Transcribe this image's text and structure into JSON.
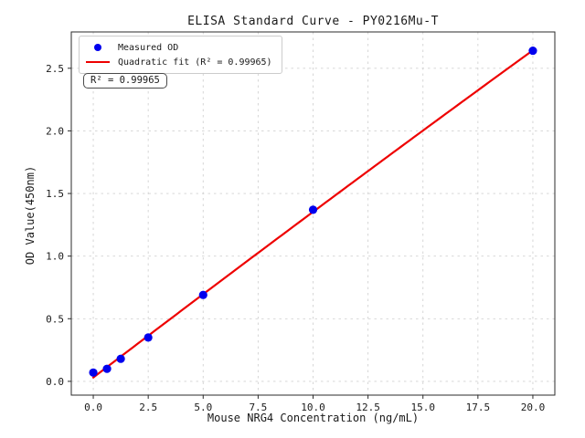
{
  "chart_data": {
    "type": "scatter",
    "title": "ELISA Standard Curve - PY0216Mu-T",
    "xlabel": "Mouse NRG4 Concentration (ng/mL)",
    "ylabel": "OD Value(450nm)",
    "xlim": [
      -1,
      21
    ],
    "ylim": [
      -0.11,
      2.79
    ],
    "grid": true,
    "grid_style": "dashed",
    "legend_position": "upper-left",
    "x_tick_values": [
      0,
      2.5,
      5,
      7.5,
      10,
      12.5,
      15,
      17.5,
      20
    ],
    "x_tick_labels": [
      "0.0",
      "2.5",
      "5.0",
      "7.5",
      "10.0",
      "12.5",
      "15.0",
      "17.5",
      "20.0"
    ],
    "y_tick_values": [
      0,
      0.5,
      1,
      1.5,
      2,
      2.5
    ],
    "y_tick_labels": [
      "0.0",
      "0.5",
      "1.0",
      "1.5",
      "2.0",
      "2.5"
    ],
    "series": [
      {
        "name": "Measured OD",
        "type": "scatter",
        "color": "#0000ee",
        "x": [
          0,
          0.625,
          1.25,
          2.5,
          5,
          10,
          20
        ],
        "y": [
          0.07,
          0.1,
          0.18,
          0.35,
          0.69,
          1.37,
          2.64
        ]
      },
      {
        "name": "Quadratic fit (R² = 0.99965)",
        "type": "quadratic-fit",
        "color": "#ee0000",
        "fit_of": "Measured OD",
        "r_squared": 0.99965,
        "x_range": [
          0,
          20
        ]
      }
    ],
    "annotation": {
      "text": "R² = 0.99965"
    }
  },
  "colors": {
    "scatter": "#0000ee",
    "fit_line": "#ee0000",
    "grid": "#d2d2d2",
    "spine": "#2b2b2b",
    "text": "#1a1a1a"
  }
}
